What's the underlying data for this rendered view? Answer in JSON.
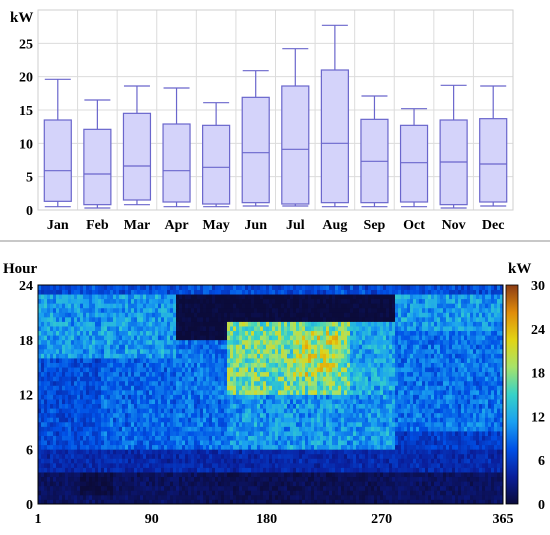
{
  "chart_data": [
    {
      "type": "box",
      "ylabel": "kW",
      "ylim": [
        0,
        30
      ],
      "yticks": [
        0,
        5,
        10,
        15,
        20,
        25
      ],
      "categories": [
        "Jan",
        "Feb",
        "Mar",
        "Apr",
        "May",
        "Jun",
        "Jul",
        "Aug",
        "Sep",
        "Oct",
        "Nov",
        "Dec"
      ],
      "boxes": [
        {
          "min": 0.5,
          "q1": 1.3,
          "median": 5.9,
          "q3": 13.5,
          "max": 19.6
        },
        {
          "min": 0.3,
          "q1": 0.8,
          "median": 5.4,
          "q3": 12.1,
          "max": 16.5
        },
        {
          "min": 0.8,
          "q1": 1.5,
          "median": 6.6,
          "q3": 14.5,
          "max": 18.6
        },
        {
          "min": 0.5,
          "q1": 1.2,
          "median": 5.9,
          "q3": 12.9,
          "max": 18.3
        },
        {
          "min": 0.5,
          "q1": 0.9,
          "median": 6.4,
          "q3": 12.7,
          "max": 16.1
        },
        {
          "min": 0.6,
          "q1": 1.1,
          "median": 8.6,
          "q3": 16.9,
          "max": 20.9
        },
        {
          "min": 0.6,
          "q1": 0.9,
          "median": 9.1,
          "q3": 18.6,
          "max": 24.2
        },
        {
          "min": 0.5,
          "q1": 1.1,
          "median": 10.0,
          "q3": 21.0,
          "max": 27.7
        },
        {
          "min": 0.5,
          "q1": 1.1,
          "median": 7.3,
          "q3": 13.6,
          "max": 17.1
        },
        {
          "min": 0.5,
          "q1": 1.2,
          "median": 7.1,
          "q3": 12.7,
          "max": 15.2
        },
        {
          "min": 0.3,
          "q1": 0.8,
          "median": 7.2,
          "q3": 13.5,
          "max": 18.7
        },
        {
          "min": 0.6,
          "q1": 1.2,
          "median": 6.9,
          "q3": 13.7,
          "max": 18.6
        }
      ],
      "colors": {
        "box_fill": "#d4d3fa",
        "box_stroke": "#6a66cc",
        "grid": "#dcdcdc"
      }
    },
    {
      "type": "heatmap",
      "ylabel": "Hour",
      "xlim": [
        1,
        365
      ],
      "ylim": [
        0,
        24
      ],
      "xticks": [
        1,
        90,
        180,
        270,
        365
      ],
      "yticks": [
        0,
        6,
        12,
        18,
        24
      ],
      "colorbar": {
        "label": "kW",
        "min": 0,
        "max": 30,
        "ticks": [
          0,
          6,
          12,
          18,
          24,
          30
        ]
      },
      "colorscale": [
        "#0b0b3a",
        "#0a1e9a",
        "#0050e6",
        "#1aa0f0",
        "#37d2c8",
        "#a6e36a",
        "#e2d414",
        "#e08c0a",
        "#8c3c14"
      ],
      "regions": [
        {
          "days": [
            1,
            365
          ],
          "hours": [
            0,
            3.5
          ],
          "kw": 1.5
        },
        {
          "days": [
            35,
            60
          ],
          "hours": [
            1,
            3.5
          ],
          "kw": 0.3
        },
        {
          "days": [
            130,
            270
          ],
          "hours": [
            0,
            3.5
          ],
          "kw": 1
        },
        {
          "days": [
            1,
            365
          ],
          "hours": [
            3.5,
            6
          ],
          "kw": 4.5
        },
        {
          "days": [
            1,
            110
          ],
          "hours": [
            6,
            16
          ],
          "kw": 7
        },
        {
          "days": [
            50,
            110
          ],
          "hours": [
            6,
            16
          ],
          "kw": 8.5
        },
        {
          "days": [
            110,
            150
          ],
          "hours": [
            6,
            18
          ],
          "kw": 9
        },
        {
          "days": [
            150,
            280
          ],
          "hours": [
            6,
            12
          ],
          "kw": 11
        },
        {
          "days": [
            150,
            245
          ],
          "hours": [
            12,
            20
          ],
          "kw": 17
        },
        {
          "days": [
            200,
            235
          ],
          "hours": [
            14,
            19
          ],
          "kw": 20
        },
        {
          "days": [
            245,
            280
          ],
          "hours": [
            12,
            20
          ],
          "kw": 12
        },
        {
          "days": [
            280,
            365
          ],
          "hours": [
            8,
            19
          ],
          "kw": 9
        },
        {
          "days": [
            280,
            365
          ],
          "hours": [
            6,
            8
          ],
          "kw": 6
        },
        {
          "days": [
            1,
            110
          ],
          "hours": [
            16,
            23
          ],
          "kw": 11
        },
        {
          "days": [
            280,
            365
          ],
          "hours": [
            19,
            23
          ],
          "kw": 11
        },
        {
          "days": [
            1,
            365
          ],
          "hours": [
            23,
            24
          ],
          "kw": 7
        }
      ]
    }
  ]
}
